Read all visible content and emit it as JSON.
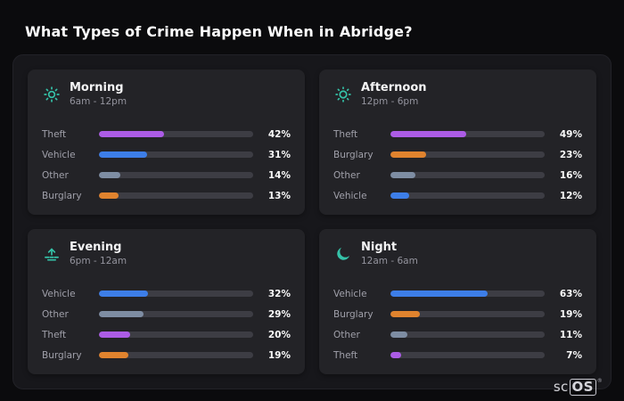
{
  "page": {
    "title": "What Types of Crime Happen When in Abridge?"
  },
  "colors": {
    "theft": "#ac5ce6",
    "vehicle": "#3d7ee8",
    "other": "#7e8da3",
    "burglary": "#e0832e",
    "icon": "#35c3a9"
  },
  "branding": {
    "logo_prefix": "sc",
    "logo_suffix": "OS",
    "registered": "®"
  },
  "chart_data": [
    {
      "type": "bar",
      "title": "Morning",
      "subtitle": "6am - 12pm",
      "icon": "morning-sun-icon",
      "unit": "%",
      "xlim": [
        0,
        100
      ],
      "categories": [
        "Theft",
        "Vehicle",
        "Other",
        "Burglary"
      ],
      "values": [
        42,
        31,
        14,
        13
      ],
      "rows": [
        {
          "label": "Theft",
          "value": 42,
          "display": "42%",
          "category": "theft"
        },
        {
          "label": "Vehicle",
          "value": 31,
          "display": "31%",
          "category": "vehicle"
        },
        {
          "label": "Other",
          "value": 14,
          "display": "14%",
          "category": "other"
        },
        {
          "label": "Burglary",
          "value": 13,
          "display": "13%",
          "category": "burglary"
        }
      ]
    },
    {
      "type": "bar",
      "title": "Afternoon",
      "subtitle": "12pm - 6pm",
      "icon": "afternoon-sun-icon",
      "unit": "%",
      "xlim": [
        0,
        100
      ],
      "categories": [
        "Theft",
        "Burglary",
        "Other",
        "Vehicle"
      ],
      "values": [
        49,
        23,
        16,
        12
      ],
      "rows": [
        {
          "label": "Theft",
          "value": 49,
          "display": "49%",
          "category": "theft"
        },
        {
          "label": "Burglary",
          "value": 23,
          "display": "23%",
          "category": "burglary"
        },
        {
          "label": "Other",
          "value": 16,
          "display": "16%",
          "category": "other"
        },
        {
          "label": "Vehicle",
          "value": 12,
          "display": "12%",
          "category": "vehicle"
        }
      ]
    },
    {
      "type": "bar",
      "title": "Evening",
      "subtitle": "6pm - 12am",
      "icon": "sunset-icon",
      "unit": "%",
      "xlim": [
        0,
        100
      ],
      "categories": [
        "Vehicle",
        "Other",
        "Theft",
        "Burglary"
      ],
      "values": [
        32,
        29,
        20,
        19
      ],
      "rows": [
        {
          "label": "Vehicle",
          "value": 32,
          "display": "32%",
          "category": "vehicle"
        },
        {
          "label": "Other",
          "value": 29,
          "display": "29%",
          "category": "other"
        },
        {
          "label": "Theft",
          "value": 20,
          "display": "20%",
          "category": "theft"
        },
        {
          "label": "Burglary",
          "value": 19,
          "display": "19%",
          "category": "burglary"
        }
      ]
    },
    {
      "type": "bar",
      "title": "Night",
      "subtitle": "12am - 6am",
      "icon": "moon-icon",
      "unit": "%",
      "xlim": [
        0,
        100
      ],
      "categories": [
        "Vehicle",
        "Burglary",
        "Other",
        "Theft"
      ],
      "values": [
        63,
        19,
        11,
        7
      ],
      "rows": [
        {
          "label": "Vehicle",
          "value": 63,
          "display": "63%",
          "category": "vehicle"
        },
        {
          "label": "Burglary",
          "value": 19,
          "display": "19%",
          "category": "burglary"
        },
        {
          "label": "Other",
          "value": 11,
          "display": "11%",
          "category": "other"
        },
        {
          "label": "Theft",
          "value": 7,
          "display": "7%",
          "category": "theft"
        }
      ]
    }
  ]
}
